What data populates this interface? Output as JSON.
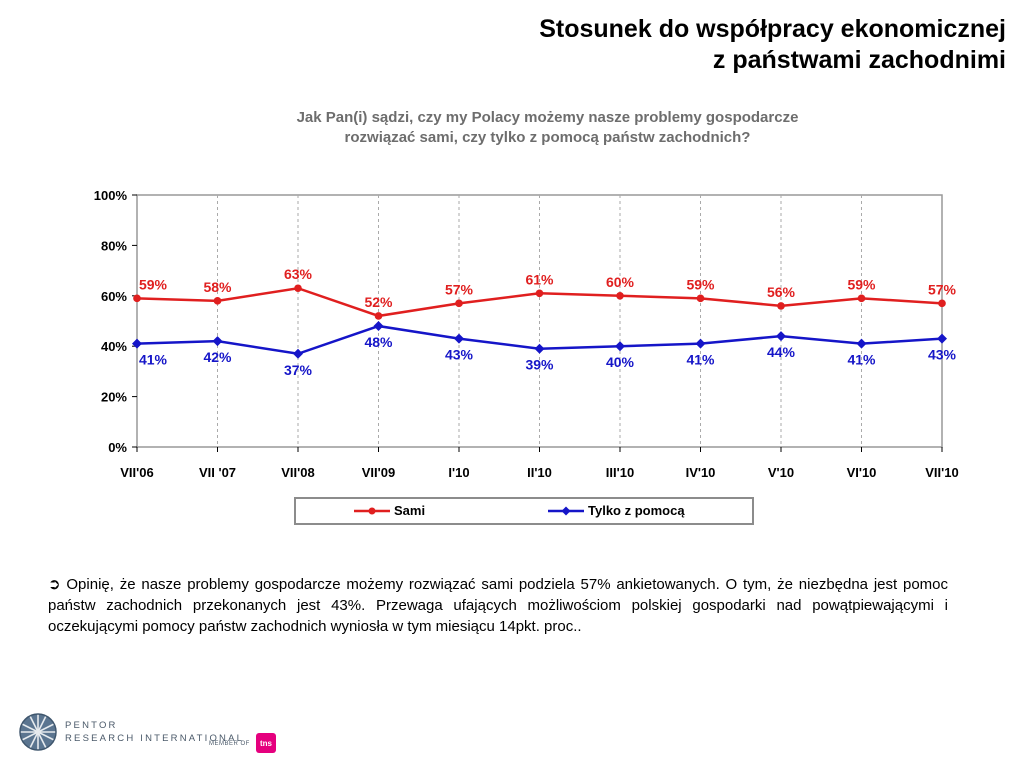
{
  "title_line1": "Stosunek do współpracy ekonomicznej",
  "title_line2": "z państwami zachodnimi",
  "question_line1": "Jak Pan(i) sądzi, czy my Polacy możemy nasze problemy gospodarcze",
  "question_line2": "rozwiązać sami, czy tylko z pomocą  państw zachodnich?",
  "chart_data": {
    "type": "line",
    "categories": [
      "VII'06",
      "VII '07",
      "VII'08",
      "VII'09",
      "I'10",
      "II'10",
      "III'10",
      "IV'10",
      "V'10",
      "VI'10",
      "VII'10"
    ],
    "y_ticks": [
      "0%",
      "20%",
      "40%",
      "60%",
      "80%",
      "100%"
    ],
    "ylim": [
      0,
      100
    ],
    "grid": "vertical dashed",
    "legend_position": "bottom",
    "series": [
      {
        "name": "Sami",
        "color": "#e01f1f",
        "marker": "circle",
        "values": [
          59,
          58,
          63,
          52,
          57,
          61,
          60,
          59,
          56,
          59,
          57
        ],
        "labels": [
          "59%",
          "58%",
          "63%",
          "52%",
          "57%",
          "61%",
          "60%",
          "59%",
          "56%",
          "59%",
          "57%"
        ]
      },
      {
        "name": "Tylko z pomocą",
        "color": "#1515c8",
        "marker": "diamond",
        "values": [
          41,
          42,
          37,
          48,
          43,
          39,
          40,
          41,
          44,
          41,
          43
        ],
        "labels": [
          "41%",
          "42%",
          "37%",
          "48%",
          "43%",
          "39%",
          "40%",
          "41%",
          "44%",
          "41%",
          "43%"
        ]
      }
    ]
  },
  "note": {
    "arrow": "➲",
    "text": "Opinię, że nasze problemy gospodarcze możemy rozwiązać sami podziela 57% ankietowanych. O tym, że niezbędna jest pomoc państw zachodnich przekonanych jest 43%. Przewaga ufających możliwościom polskiej gospodarki nad powątpiewającymi i oczekującymi pomocy państw zachodnich wyniosła w tym miesiącu 14pkt. proc.."
  },
  "footer": {
    "brand_line1": "PENTOR",
    "brand_line2": "RESEARCH INTERNATIONAL",
    "member": "MEMBER OF",
    "tns": "tns"
  }
}
